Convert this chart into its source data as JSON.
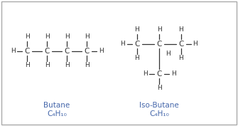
{
  "bg_color": "#ffffff",
  "border_color": "#aaaaaa",
  "atom_color": "#333333",
  "label_color": "#4466aa",
  "bond_color": "#333333",
  "font_size_atom": 7.5,
  "font_size_H": 6.5,
  "font_size_label": 7.5,
  "butane_label": "Butane",
  "butane_formula": "C₄H₁₀",
  "isobutane_label": "Iso-Butane",
  "isobutane_formula": "C₄H₁₀"
}
